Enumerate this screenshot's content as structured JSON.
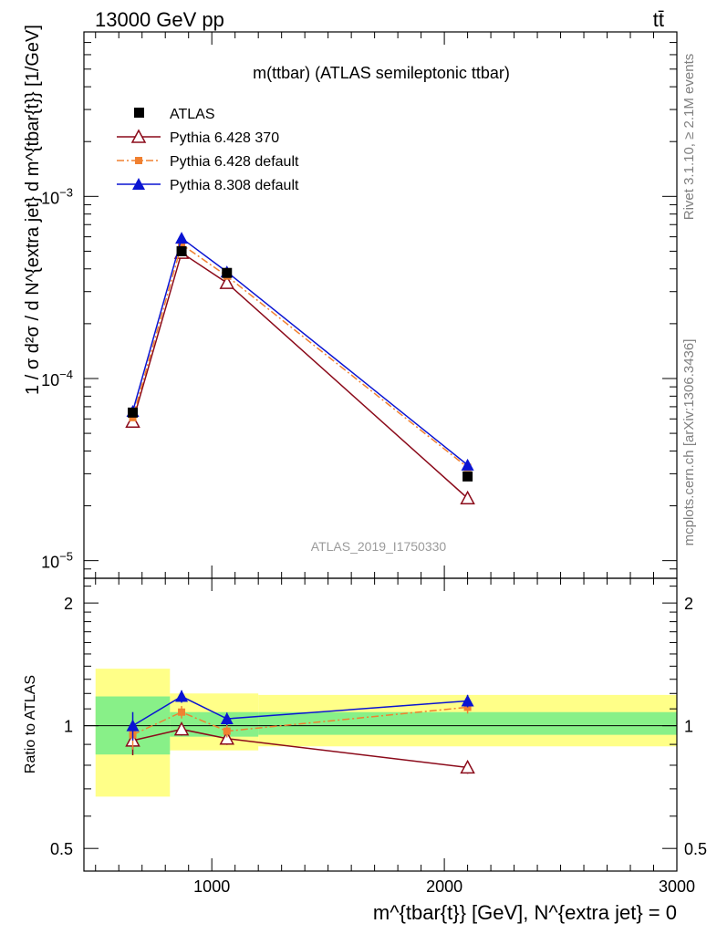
{
  "header": {
    "energy_label": "13000 GeV pp",
    "process_label": "tt̄",
    "plot_title": "m(ttbar) (ATLAS semileptonic ttbar)",
    "analysis_id": "ATLAS_2019_I1750330",
    "rivet_label": "Rivet 3.1.10, ≥ 2.1M events",
    "source_label": "mcplots.cern.ch [arXiv:1306.3436]"
  },
  "axes": {
    "upper_ylabel": "1 / σ d²σ / d N^{extra jet} d m^{tbar{t}} [1/GeV]",
    "lower_ylabel": "Ratio to ATLAS",
    "xlabel": "m^{tbar{t}} [GeV], N^{extra jet} = 0"
  },
  "legend": [
    {
      "label": "ATLAS",
      "color": "#000000",
      "marker": "square-filled"
    },
    {
      "label": "Pythia 6.428 370",
      "color": "#8b0a1a",
      "marker": "triangle-open"
    },
    {
      "label": "Pythia 6.428 default",
      "color": "#f08030",
      "marker": "square-small",
      "dash": "dashdot"
    },
    {
      "label": "Pythia 8.308 default",
      "color": "#0a14d2",
      "marker": "triangle-filled"
    }
  ],
  "chart_data": [
    {
      "type": "line",
      "panel": "main",
      "yscale": "log",
      "xlim": [
        450,
        3000
      ],
      "ylim": [
        8e-06,
        0.008
      ],
      "ytick_labels": [
        "10^-5",
        "10^-4",
        "10^-3"
      ],
      "x": [
        660,
        870,
        1065,
        2100
      ],
      "series": [
        {
          "name": "ATLAS",
          "values": [
            6.5e-05,
            0.0005,
            0.00038,
            2.9e-05
          ]
        },
        {
          "name": "Pythia 6.428 370",
          "values": [
            5.8e-05,
            0.00049,
            0.000335,
            2.2e-05
          ]
        },
        {
          "name": "Pythia 6.428 default",
          "values": [
            6.1e-05,
            0.000545,
            0.000365,
            3.25e-05
          ]
        },
        {
          "name": "Pythia 8.308 default",
          "values": [
            6.6e-05,
            0.00059,
            0.000385,
            3.35e-05
          ]
        }
      ]
    },
    {
      "type": "line",
      "panel": "ratio",
      "yscale": "log",
      "xlim": [
        450,
        3000
      ],
      "ylim": [
        0.44,
        2.3
      ],
      "ytick_labels": [
        "0.5",
        "1",
        "2"
      ],
      "xtick_labels": [
        "1000",
        "2000",
        "3000"
      ],
      "reference_line": 1,
      "bands": [
        {
          "x_range": [
            500,
            820
          ],
          "yellow": [
            0.67,
            1.38
          ],
          "green": [
            0.85,
            1.18
          ]
        },
        {
          "x_range": [
            820,
            1200
          ],
          "yellow": [
            0.87,
            1.2
          ],
          "green": [
            0.94,
            1.08
          ]
        },
        {
          "x_range": [
            1200,
            3000
          ],
          "yellow": [
            0.89,
            1.19
          ],
          "green": [
            0.95,
            1.08
          ]
        }
      ],
      "x": [
        660,
        870,
        1065,
        2100
      ],
      "series": [
        {
          "name": "Pythia 6.428 370",
          "values": [
            0.92,
            0.98,
            0.93,
            0.79
          ]
        },
        {
          "name": "Pythia 6.428 default",
          "values": [
            0.95,
            1.08,
            0.97,
            1.11
          ]
        },
        {
          "name": "Pythia 8.308 default",
          "values": [
            1.0,
            1.18,
            1.04,
            1.15
          ]
        }
      ]
    }
  ]
}
